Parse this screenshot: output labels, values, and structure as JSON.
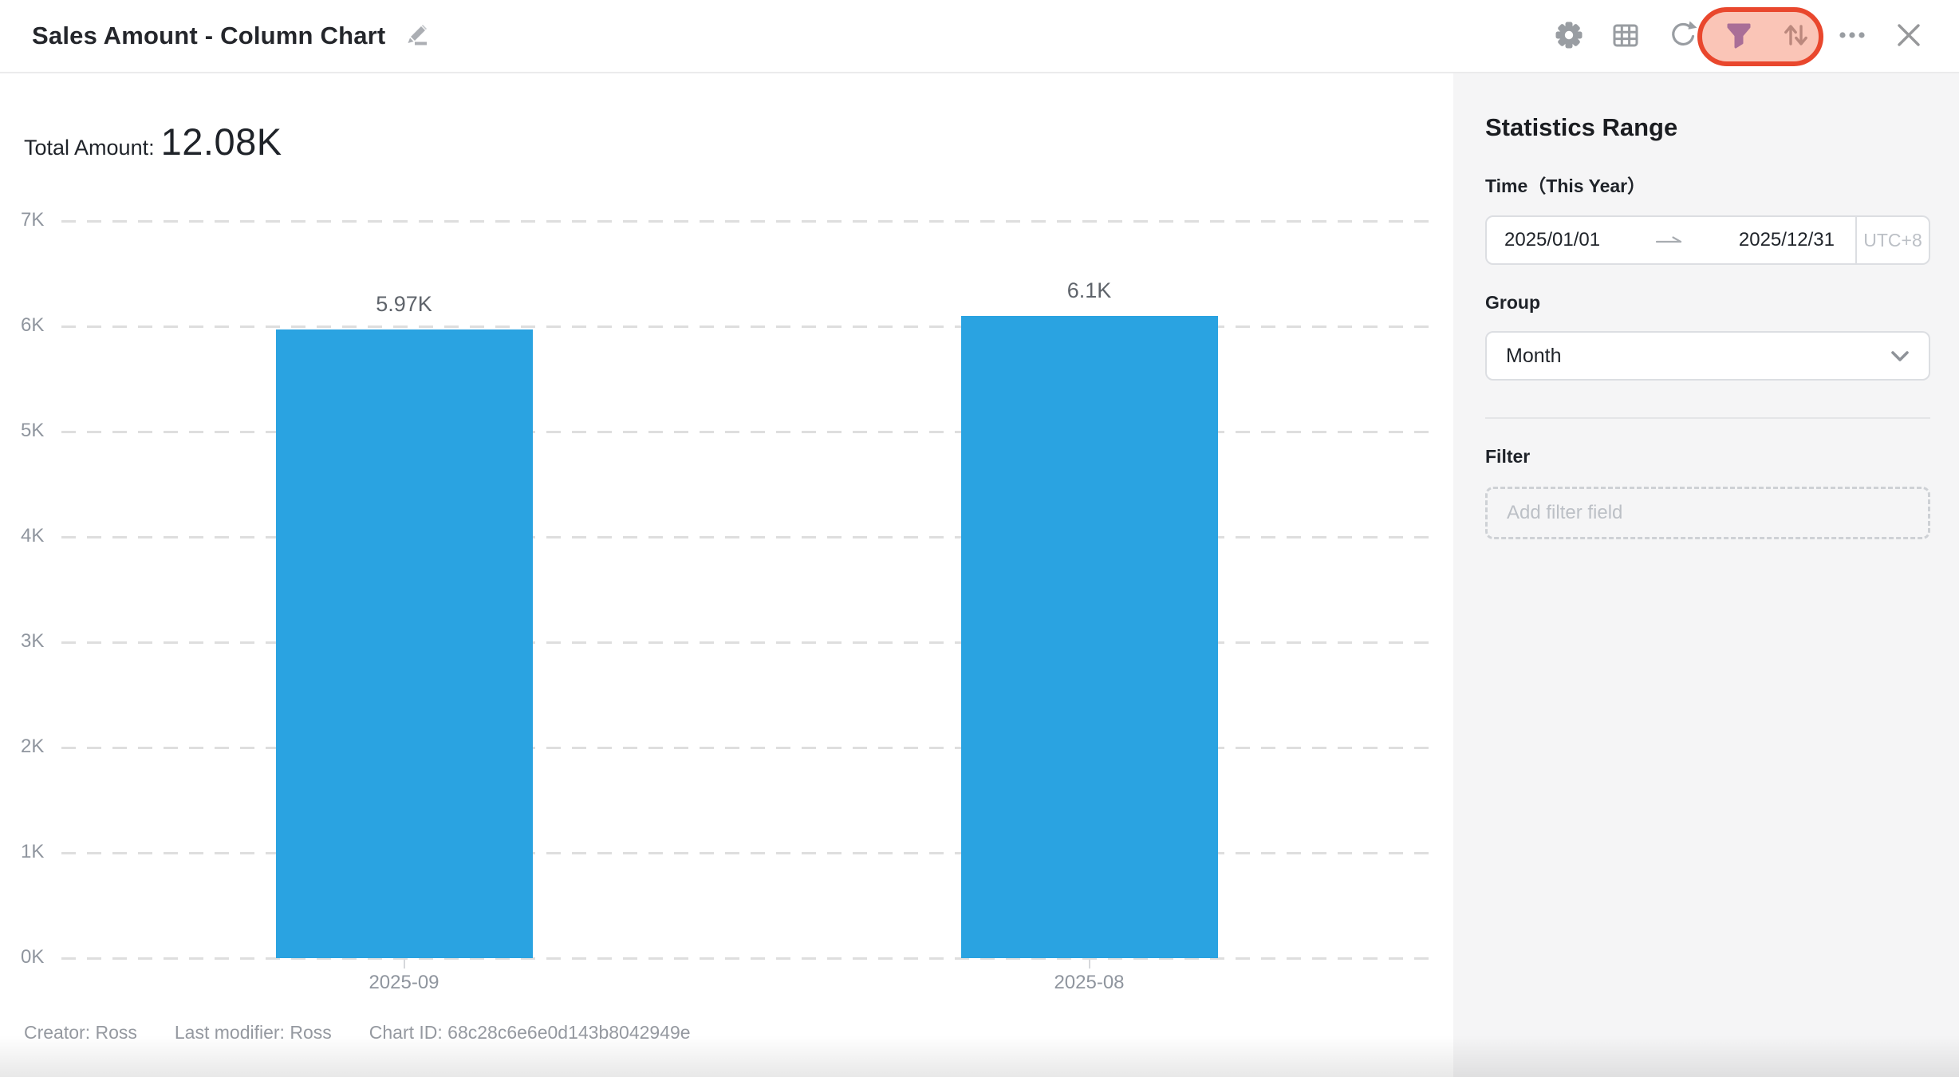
{
  "window": {
    "title": "Sales Amount - Column Chart"
  },
  "toolbar": {
    "icons": [
      "edit-pencil",
      "settings-gear",
      "data-table",
      "refresh",
      "filter-funnel",
      "sort-arrows",
      "more-ellipsis",
      "close-x"
    ]
  },
  "annotation": {
    "shape": "rounded-oval",
    "highlights": "filter-and-sort-buttons",
    "stroke": "#E9472D",
    "fill": "rgba(243,122,90,0.44)"
  },
  "summary": {
    "label": "Total Amount:",
    "value": "12.08K"
  },
  "chart_data": {
    "type": "bar",
    "title": "Sales Amount - Column Chart",
    "series_name": "Sales Amount",
    "categories": [
      "2025-09",
      "2025-08"
    ],
    "values": [
      5970,
      6100
    ],
    "value_labels": [
      "5.97K",
      "6.1K"
    ],
    "total": "12.08K",
    "xlabel": "",
    "ylabel": "",
    "ylim": [
      0,
      7000
    ],
    "ytick_interval": 1000,
    "ytick_labels": [
      "0K",
      "1K",
      "2K",
      "3K",
      "4K",
      "5K",
      "6K",
      "7K"
    ],
    "grid": "horizontal-dashed",
    "legend": "none",
    "bar_color": "#2AA3E1"
  },
  "sidebar": {
    "title": "Statistics Range",
    "time": {
      "label": "Time（This Year）",
      "start": "2025/01/01",
      "end": "2025/12/31",
      "timezone": "UTC+8"
    },
    "group": {
      "label": "Group",
      "value": "Month"
    },
    "filter": {
      "label": "Filter",
      "placeholder": "Add filter field"
    }
  },
  "footer": {
    "items": [
      {
        "label": "Creator:",
        "value": "Ross"
      },
      {
        "label": "Last modifier:",
        "value": "Ross"
      },
      {
        "label": "Chart ID:",
        "value": "68c28c6e6e0d143b8042949e"
      }
    ]
  },
  "colors": {
    "bar": "#2AA3E1",
    "annotation_ring": "#E9472D",
    "filter_icon_active": "#6F64C6",
    "icon_gray": "#999da2",
    "sidebar_bg": "#f5f5f6",
    "grid_line": "#dedede",
    "axis_text": "#8f959e",
    "value_text": "#5f646b",
    "footer_text": "#9599a0"
  }
}
